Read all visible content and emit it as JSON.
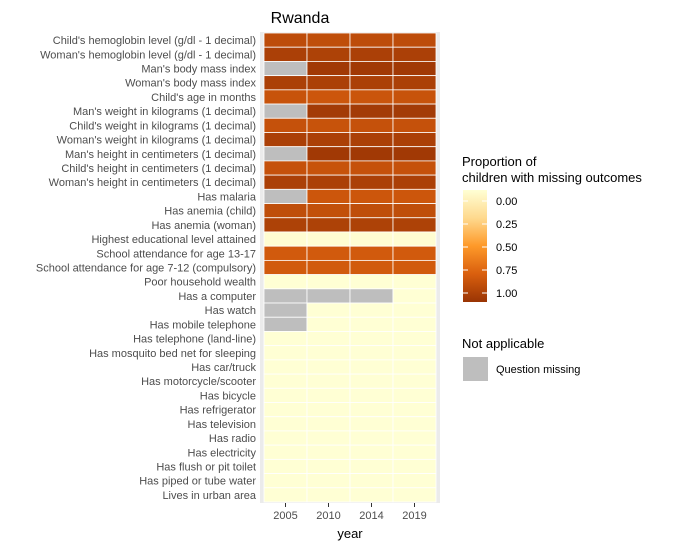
{
  "chart_data": {
    "type": "heatmap",
    "title": "Rwanda",
    "xlabel": "year",
    "ylabel": "",
    "x": [
      "2005",
      "2010",
      "2014",
      "2019"
    ],
    "rows": [
      "Child's hemoglobin level (g/dl - 1 decimal)",
      "Woman's hemoglobin level (g/dl - 1 decimal)",
      "Man's body mass index",
      "Woman's body mass index",
      "Child's age in months",
      "Man's weight in kilograms (1 decimal)",
      "Child's weight in kilograms (1 decimal)",
      "Woman's weight in kilograms (1 decimal)",
      "Man's height in centimeters (1 decimal)",
      "Child's height in centimeters (1 decimal)",
      "Woman's height in centimeters (1 decimal)",
      "Has malaria",
      "Has anemia (child)",
      "Has anemia (woman)",
      "Highest educational level attained",
      "School attendance for age 13-17",
      "School attendance for age 7-12 (compulsory)",
      "Poor household wealth",
      "Has a computer",
      "Has watch",
      "Has mobile telephone",
      "Has telephone (land-line)",
      "Has mosquito bed net for sleeping",
      "Has car/truck",
      "Has motorcycle/scooter",
      "Has bicycle",
      "Has refrigerator",
      "Has television",
      "Has radio",
      "Has electricity",
      "Has flush or pit toilet",
      "Has piped or tube water",
      "Lives in urban area"
    ],
    "values": [
      [
        0.86,
        0.85,
        0.86,
        0.86
      ],
      [
        0.93,
        0.92,
        0.93,
        0.93
      ],
      [
        null,
        0.97,
        0.97,
        0.97
      ],
      [
        0.93,
        0.93,
        0.93,
        0.93
      ],
      [
        0.82,
        0.8,
        0.81,
        0.82
      ],
      [
        null,
        0.96,
        0.96,
        0.96
      ],
      [
        0.83,
        0.82,
        0.83,
        0.83
      ],
      [
        0.93,
        0.93,
        0.93,
        0.93
      ],
      [
        null,
        0.97,
        0.97,
        0.97
      ],
      [
        0.83,
        0.82,
        0.83,
        0.83
      ],
      [
        0.93,
        0.93,
        0.93,
        0.93
      ],
      [
        null,
        0.8,
        0.8,
        0.8
      ],
      [
        0.85,
        0.84,
        0.85,
        0.85
      ],
      [
        0.92,
        0.92,
        0.92,
        0.92
      ],
      [
        0.01,
        0.01,
        0.01,
        0.01
      ],
      [
        0.78,
        0.78,
        0.78,
        0.78
      ],
      [
        0.78,
        0.78,
        0.78,
        0.78
      ],
      [
        0.0,
        0.0,
        0.0,
        0.0
      ],
      [
        null,
        null,
        null,
        0.0
      ],
      [
        null,
        0.0,
        0.0,
        0.0
      ],
      [
        null,
        0.0,
        0.0,
        0.0
      ],
      [
        0.0,
        0.0,
        0.0,
        0.0
      ],
      [
        0.0,
        0.0,
        0.0,
        0.0
      ],
      [
        0.0,
        0.0,
        0.0,
        0.0
      ],
      [
        0.0,
        0.0,
        0.0,
        0.0
      ],
      [
        0.0,
        0.0,
        0.0,
        0.0
      ],
      [
        0.0,
        0.0,
        0.0,
        0.0
      ],
      [
        0.0,
        0.0,
        0.0,
        0.0
      ],
      [
        0.0,
        0.0,
        0.0,
        0.0
      ],
      [
        0.0,
        0.0,
        0.0,
        0.0
      ],
      [
        0.0,
        0.0,
        0.0,
        0.0
      ],
      [
        0.0,
        0.0,
        0.0,
        0.0
      ],
      [
        0.0,
        0.0,
        0.0,
        0.0
      ]
    ],
    "legend": {
      "title_line1": "Proportion of",
      "title_line2": "children with missing outcomes",
      "breaks": [
        "0.00",
        "0.25",
        "0.50",
        "0.75",
        "1.00"
      ],
      "colors": [
        "#FFFFD4",
        "#FED98E",
        "#FE9929",
        "#D95F0E",
        "#993404"
      ],
      "na_title": "Not applicable",
      "na_label": "Question missing",
      "na_color": "#BEBEBE",
      "placement": "right"
    },
    "background": "#EBEBEB"
  }
}
